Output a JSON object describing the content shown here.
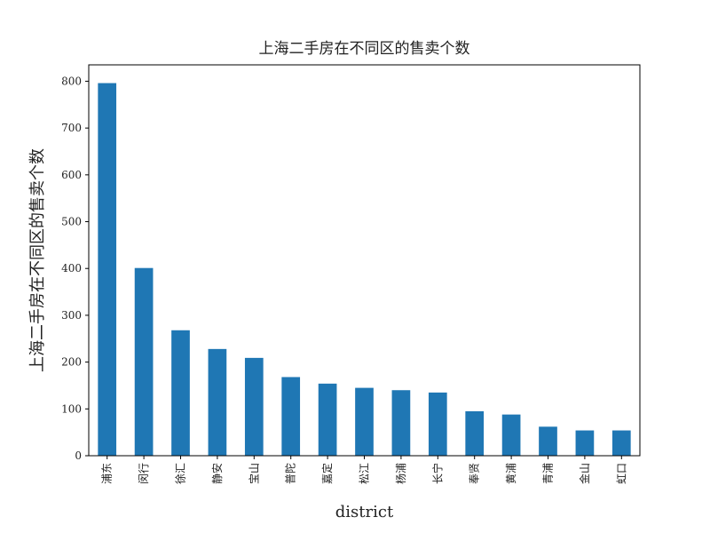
{
  "chart_data": {
    "type": "bar",
    "title": "上海二手房在不同区的售卖个数",
    "xlabel": "district",
    "ylabel": "上海二手房在不同区的售卖个数",
    "categories": [
      "浦东",
      "闵行",
      "徐汇",
      "静安",
      "宝山",
      "普陀",
      "嘉定",
      "松江",
      "杨浦",
      "长宁",
      "奉贤",
      "黄浦",
      "青浦",
      "金山",
      "虹口"
    ],
    "values": [
      796,
      401,
      268,
      228,
      209,
      168,
      154,
      145,
      140,
      135,
      95,
      88,
      62,
      54,
      54
    ],
    "ylim": [
      0,
      835
    ],
    "yticks": [
      0,
      100,
      200,
      300,
      400,
      500,
      600,
      700,
      800
    ],
    "grid": false,
    "bar_color": "#1f77b4"
  }
}
